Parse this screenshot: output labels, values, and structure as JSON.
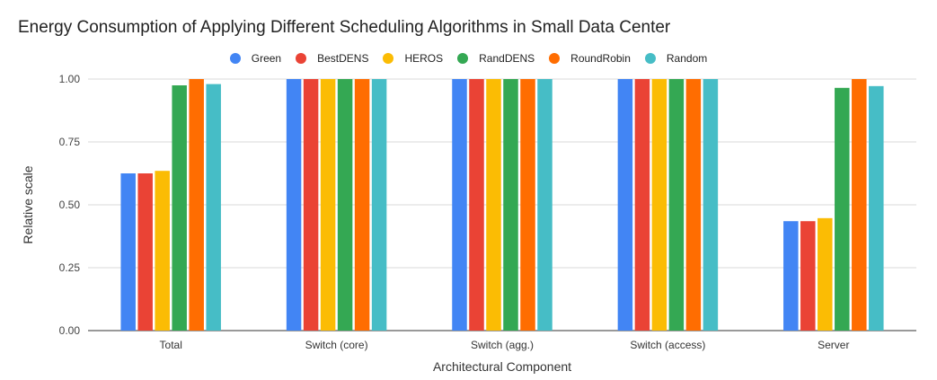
{
  "chart_data": {
    "type": "bar",
    "title": "Energy Consumption of Applying Different Scheduling Algorithms in Small Data Center",
    "xlabel": "Architectural Component",
    "ylabel": "Relative scale",
    "ylim": [
      0,
      1.0
    ],
    "yticks": [
      "0.00",
      "0.25",
      "0.50",
      "0.75",
      "1.00"
    ],
    "ytick_values": [
      0,
      0.25,
      0.5,
      0.75,
      1.0
    ],
    "grid": true,
    "legend_position": "top",
    "categories": [
      "Total",
      "Switch (core)",
      "Switch (agg.)",
      "Switch (access)",
      "Server"
    ],
    "series": [
      {
        "name": "Green",
        "color": "#4285f4",
        "values": [
          0.625,
          1.0,
          1.0,
          1.0,
          0.435
        ]
      },
      {
        "name": "BestDENS",
        "color": "#ea4335",
        "values": [
          0.625,
          1.0,
          1.0,
          1.0,
          0.435
        ]
      },
      {
        "name": "HEROS",
        "color": "#fbbc04",
        "values": [
          0.635,
          1.0,
          1.0,
          1.0,
          0.447
        ]
      },
      {
        "name": "RandDENS",
        "color": "#34a853",
        "values": [
          0.975,
          1.0,
          1.0,
          1.0,
          0.965
        ]
      },
      {
        "name": "RoundRobin",
        "color": "#ff6d01",
        "values": [
          1.0,
          1.0,
          1.0,
          1.0,
          1.0
        ]
      },
      {
        "name": "Random",
        "color": "#46bdc6",
        "values": [
          0.98,
          1.0,
          1.0,
          1.0,
          0.972
        ]
      }
    ]
  }
}
